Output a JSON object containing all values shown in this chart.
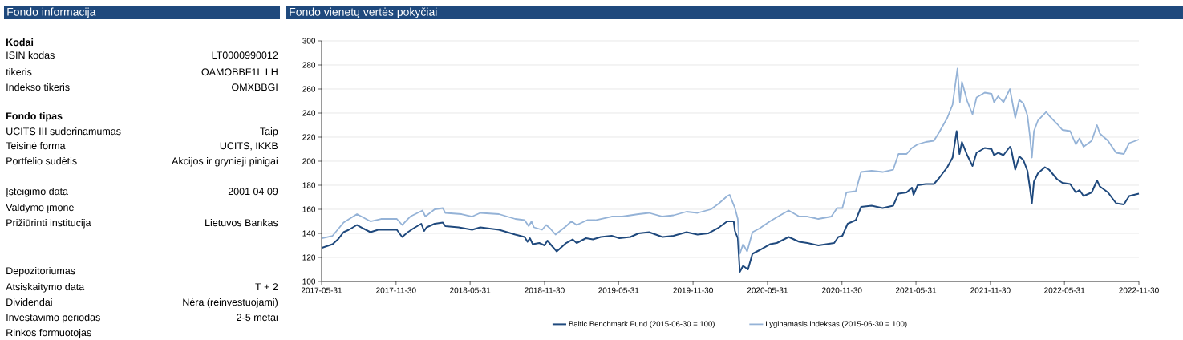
{
  "chart_data": [
    {
      "type": "other",
      "title": "Fondo informacija",
      "annotations": [
        "Kodai",
        "ISIN kodas",
        "LT0000990012",
        "tikeris",
        "OAMOBBF1L LH",
        "Indekso tikeris",
        "OMXBBGI",
        "Fondo tipas",
        "UCITS III suderinamumas",
        "Taip",
        "Teisinė forma",
        "UCITS, IKKB",
        "Portfelio sudėtis",
        "Akcijos ir grynieji pinigai",
        "Įsteigimo data",
        "2001 04 09",
        "Valdymo įmonė",
        "Prižiūrinti institucija",
        "Lietuvos Bankas",
        "Depozitoriumas",
        "Atsiskaitymo data",
        "T + 2",
        "Dividendai",
        "Nėra (reinvestuojami)",
        "Investavimo periodas",
        "2-5 metai",
        "Rinkos formuotojas"
      ]
    },
    {
      "type": "line",
      "title": "Fondo vienetų vertės pokyčiai",
      "xlim": [
        "2017-05-31",
        "2022-11-30"
      ],
      "xticks": [
        "2017-05-31",
        "2017-11-30",
        "2018-05-31",
        "2018-11-30",
        "2019-05-31",
        "2019-11-30",
        "2020-05-31",
        "2020-11-30",
        "2021-05-31",
        "2021-11-30",
        "2022-05-31",
        "2022-11-30"
      ],
      "ylim": [
        100,
        300
      ],
      "yticks": [
        100,
        120,
        140,
        160,
        180,
        200,
        220,
        240,
        260,
        280,
        300
      ],
      "grid": "y",
      "legend": "bottom",
      "series": [
        {
          "name": "Baltic Benchmark Fund (2015-06-30 = 100)",
          "color": "#1f497d",
          "x": [
            "2017-06-01",
            "2017-06-27",
            "2017-07-10",
            "2017-07-24",
            "2017-08-06",
            "2017-08-26",
            "2017-09-11",
            "2017-09-28",
            "2017-10-17",
            "2017-11-06",
            "2017-12-02",
            "2017-12-15",
            "2017-12-29",
            "2018-01-11",
            "2018-01-31",
            "2018-02-07",
            "2018-02-13",
            "2018-03-05",
            "2018-03-25",
            "2018-03-31",
            "2018-05-03",
            "2018-06-05",
            "2018-06-25",
            "2018-08-10",
            "2018-09-19",
            "2018-10-12",
            "2018-10-19",
            "2018-10-25",
            "2018-11-01",
            "2018-11-17",
            "2018-11-30",
            "2018-12-07",
            "2018-12-17",
            "2018-12-30",
            "2019-01-22",
            "2019-02-07",
            "2019-02-17",
            "2019-03-12",
            "2019-03-29",
            "2019-04-17",
            "2019-05-14",
            "2019-06-02",
            "2019-06-29",
            "2019-07-19",
            "2019-08-14",
            "2019-09-16",
            "2019-10-13",
            "2019-11-14",
            "2019-12-11",
            "2020-01-06",
            "2020-02-02",
            "2020-02-22",
            "2020-03-09",
            "2020-03-12",
            "2020-03-19",
            "2020-03-24",
            "2020-04-01",
            "2020-04-13",
            "2020-04-24",
            "2020-05-11",
            "2020-06-06",
            "2020-06-23",
            "2020-07-22",
            "2020-08-17",
            "2020-09-06",
            "2020-10-03",
            "2020-11-11",
            "2020-11-21",
            "2020-12-01",
            "2020-12-14",
            "2021-01-03",
            "2021-01-16",
            "2021-02-11",
            "2021-03-10",
            "2021-04-05",
            "2021-04-18",
            "2021-05-08",
            "2021-05-21",
            "2021-05-25",
            "2021-06-04",
            "2021-06-24",
            "2021-07-14",
            "2021-07-27",
            "2021-08-16",
            "2021-08-29",
            "2021-09-08",
            "2021-09-15",
            "2021-09-21",
            "2021-10-04",
            "2021-10-17",
            "2021-10-27",
            "2021-11-16",
            "2021-12-03",
            "2021-12-09",
            "2021-12-19",
            "2022-01-01",
            "2022-01-17",
            "2022-01-20",
            "2022-01-30",
            "2022-02-09",
            "2022-02-19",
            "2022-03-01",
            "2022-03-07",
            "2022-03-12",
            "2022-03-17",
            "2022-03-27",
            "2022-04-13",
            "2022-04-23",
            "2022-05-13",
            "2022-05-26",
            "2022-06-14",
            "2022-06-28",
            "2022-07-07",
            "2022-07-17",
            "2022-08-06",
            "2022-08-19",
            "2022-08-26",
            "2022-09-15",
            "2022-10-05",
            "2022-10-24",
            "2022-11-06",
            "2022-11-30"
          ],
          "values": [
            128,
            131,
            135,
            141,
            143,
            147,
            144,
            141,
            143,
            143,
            143,
            137,
            141,
            144,
            148,
            142,
            145,
            148,
            149,
            146,
            145,
            143,
            145,
            143,
            139,
            137,
            133,
            136,
            131,
            132,
            130,
            134,
            130,
            125,
            132,
            135,
            132,
            136,
            135,
            137,
            138,
            136,
            137,
            140,
            141,
            137,
            138,
            141,
            139,
            140,
            145,
            150,
            150,
            142,
            136,
            108,
            113,
            110,
            123,
            126,
            131,
            132,
            137,
            133,
            132,
            130,
            132,
            137,
            138,
            148,
            151,
            162,
            163,
            161,
            163,
            173,
            174,
            178,
            172,
            180,
            181,
            181,
            186,
            195,
            203,
            225,
            206,
            216,
            205,
            196,
            207,
            211,
            210,
            205,
            207,
            205,
            212,
            210,
            193,
            204,
            201,
            192,
            178,
            165,
            183,
            190,
            195,
            193,
            185,
            182,
            181,
            174,
            176,
            171,
            174,
            184,
            179,
            174,
            165,
            164,
            171,
            173
          ]
        },
        {
          "name": "Lyginamasis indeksas (2015-06-30 = 100)",
          "color": "#95b3d7",
          "x": [
            "2017-06-01",
            "2017-06-27",
            "2017-07-24",
            "2017-08-26",
            "2017-09-28",
            "2017-10-24",
            "2017-12-02",
            "2017-12-15",
            "2018-01-04",
            "2018-02-03",
            "2018-02-10",
            "2018-03-05",
            "2018-03-25",
            "2018-03-31",
            "2018-05-10",
            "2018-06-05",
            "2018-06-25",
            "2018-08-10",
            "2018-09-19",
            "2018-10-12",
            "2018-10-22",
            "2018-10-29",
            "2018-11-04",
            "2018-11-24",
            "2018-12-04",
            "2018-12-14",
            "2018-12-27",
            "2019-01-22",
            "2019-02-04",
            "2019-02-17",
            "2019-03-15",
            "2019-04-04",
            "2019-05-14",
            "2019-06-09",
            "2019-07-19",
            "2019-08-14",
            "2019-09-16",
            "2019-10-13",
            "2019-11-14",
            "2019-12-11",
            "2020-01-13",
            "2020-02-02",
            "2020-02-22",
            "2020-02-28",
            "2020-03-12",
            "2020-03-19",
            "2020-03-24",
            "2020-04-01",
            "2020-04-11",
            "2020-04-24",
            "2020-05-11",
            "2020-06-06",
            "2020-06-26",
            "2020-07-22",
            "2020-08-17",
            "2020-09-06",
            "2020-10-03",
            "2020-11-04",
            "2020-11-18",
            "2020-12-01",
            "2020-12-11",
            "2021-01-03",
            "2021-01-16",
            "2021-02-11",
            "2021-03-10",
            "2021-04-05",
            "2021-04-18",
            "2021-05-08",
            "2021-05-21",
            "2021-06-04",
            "2021-06-24",
            "2021-07-14",
            "2021-07-27",
            "2021-08-16",
            "2021-08-29",
            "2021-09-10",
            "2021-09-16",
            "2021-09-21",
            "2021-10-04",
            "2021-10-17",
            "2021-10-27",
            "2021-11-16",
            "2021-12-03",
            "2021-12-09",
            "2021-12-19",
            "2022-01-01",
            "2022-01-17",
            "2022-01-30",
            "2022-02-09",
            "2022-02-19",
            "2022-03-01",
            "2022-03-07",
            "2022-03-12",
            "2022-03-17",
            "2022-03-27",
            "2022-04-16",
            "2022-04-23",
            "2022-05-13",
            "2022-05-26",
            "2022-06-14",
            "2022-06-28",
            "2022-07-07",
            "2022-07-17",
            "2022-08-06",
            "2022-08-19",
            "2022-08-26",
            "2022-09-15",
            "2022-10-05",
            "2022-10-24",
            "2022-11-06",
            "2022-11-30"
          ],
          "values": [
            136,
            138,
            149,
            156,
            150,
            152,
            152,
            147,
            154,
            159,
            154,
            160,
            161,
            157,
            156,
            154,
            157,
            156,
            152,
            151,
            146,
            150,
            145,
            143,
            147,
            144,
            139,
            146,
            150,
            147,
            151,
            151,
            154,
            154,
            156,
            157,
            154,
            155,
            158,
            157,
            160,
            165,
            171,
            172,
            161,
            152,
            123,
            131,
            125,
            141,
            144,
            150,
            154,
            159,
            154,
            154,
            152,
            154,
            161,
            161,
            174,
            175,
            191,
            192,
            191,
            193,
            206,
            206,
            211,
            214,
            216,
            217,
            224,
            236,
            247,
            277,
            249,
            266,
            250,
            239,
            253,
            257,
            256,
            249,
            254,
            249,
            260,
            236,
            251,
            248,
            238,
            221,
            203,
            225,
            234,
            241,
            238,
            231,
            226,
            225,
            214,
            219,
            212,
            217,
            230,
            223,
            217,
            207,
            206,
            215,
            218
          ]
        }
      ]
    }
  ]
}
